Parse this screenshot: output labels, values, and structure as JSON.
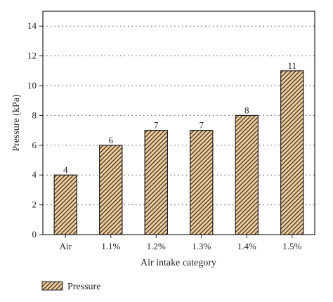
{
  "chart_data": {
    "type": "bar",
    "categories": [
      "Air",
      "1.1%",
      "1.2%",
      "1.3%",
      "1.4%",
      "1.5%"
    ],
    "series": [
      {
        "name": "Pressure",
        "values": [
          4,
          6,
          7,
          7,
          8,
          11
        ]
      }
    ],
    "data_labels": [
      "4",
      "6",
      "7",
      "7",
      "8",
      "11"
    ],
    "xlabel": "Air intake category",
    "ylabel": "Pressure (kPa)",
    "ylim": [
      0,
      15
    ],
    "yticks": [
      0,
      2,
      4,
      6,
      8,
      10,
      12,
      14
    ],
    "ytick_labels": [
      "0",
      "2",
      "4",
      "6",
      "8",
      "10",
      "12",
      "14"
    ],
    "grid": "horizontal dotted",
    "legend_position": "bottom-left",
    "colors": {
      "bar_fill": "#f3cc96",
      "hatch": "#333333",
      "frame": "#222222"
    }
  }
}
